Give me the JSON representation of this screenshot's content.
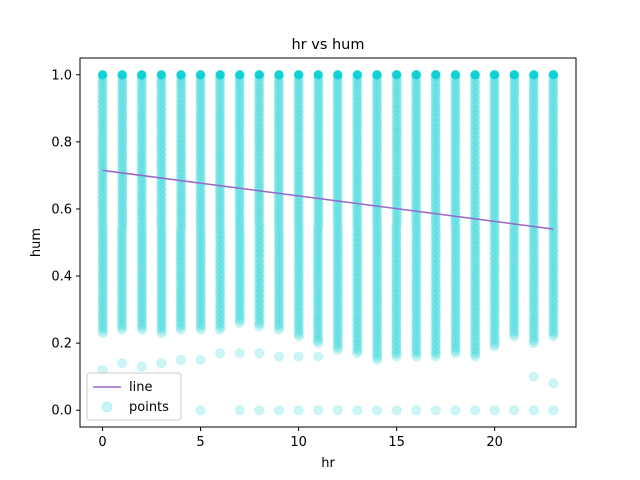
{
  "chart_data": {
    "type": "scatter",
    "title": "hr vs hum",
    "xlabel": "hr",
    "ylabel": "hum",
    "xlim": [
      -1.15,
      24.15
    ],
    "ylim": [
      -0.05,
      1.05
    ],
    "x_ticks": [
      0,
      5,
      10,
      15,
      20
    ],
    "y_ticks": [
      0.0,
      0.2,
      0.4,
      0.6,
      0.8,
      1.0
    ],
    "x_tick_labels": [
      "0",
      "5",
      "10",
      "15",
      "20"
    ],
    "y_tick_labels": [
      "0.0",
      "0.2",
      "0.4",
      "0.6",
      "0.8",
      "1.0"
    ],
    "grid": false,
    "legend": {
      "position": "lower-left",
      "entries": [
        "line",
        "points"
      ]
    },
    "series": [
      {
        "name": "points",
        "kind": "scatter",
        "color": "#00ced1",
        "alpha": 0.2,
        "x": [
          0,
          1,
          2,
          3,
          4,
          5,
          6,
          7,
          8,
          9,
          10,
          11,
          12,
          13,
          14,
          15,
          16,
          17,
          18,
          19,
          20,
          21,
          22,
          23
        ],
        "band_low": [
          0.23,
          0.24,
          0.24,
          0.23,
          0.24,
          0.24,
          0.24,
          0.26,
          0.25,
          0.24,
          0.22,
          0.2,
          0.18,
          0.17,
          0.15,
          0.16,
          0.16,
          0.16,
          0.17,
          0.16,
          0.19,
          0.22,
          0.2,
          0.22
        ],
        "band_high": [
          1.0,
          1.0,
          1.0,
          1.0,
          1.0,
          1.0,
          1.0,
          1.0,
          1.0,
          1.0,
          1.0,
          1.0,
          1.0,
          1.0,
          1.0,
          1.0,
          1.0,
          1.0,
          1.0,
          1.0,
          1.0,
          1.0,
          1.0,
          1.0
        ],
        "outliers": [
          [
            0,
            0.12
          ],
          [
            1,
            0.14
          ],
          [
            2,
            0.13
          ],
          [
            3,
            0.14
          ],
          [
            4,
            0.15
          ],
          [
            5,
            0.15
          ],
          [
            6,
            0.17
          ],
          [
            7,
            0.17
          ],
          [
            8,
            0.17
          ],
          [
            9,
            0.16
          ],
          [
            10,
            0.16
          ],
          [
            11,
            0.16
          ],
          [
            22,
            0.1
          ],
          [
            23,
            0.08
          ],
          [
            5,
            0.0
          ],
          [
            7,
            0.0
          ],
          [
            8,
            0.0
          ],
          [
            9,
            0.0
          ],
          [
            10,
            0.0
          ],
          [
            11,
            0.0
          ],
          [
            12,
            0.0
          ],
          [
            13,
            0.0
          ],
          [
            14,
            0.0
          ],
          [
            15,
            0.0
          ],
          [
            16,
            0.0
          ],
          [
            17,
            0.0
          ],
          [
            18,
            0.0
          ],
          [
            19,
            0.0
          ],
          [
            20,
            0.0
          ],
          [
            21,
            0.0
          ],
          [
            22,
            0.0
          ],
          [
            23,
            0.0
          ]
        ]
      },
      {
        "name": "line",
        "kind": "line",
        "color": "#9966cc",
        "x": [
          0,
          23
        ],
        "y": [
          0.715,
          0.54
        ]
      }
    ]
  }
}
